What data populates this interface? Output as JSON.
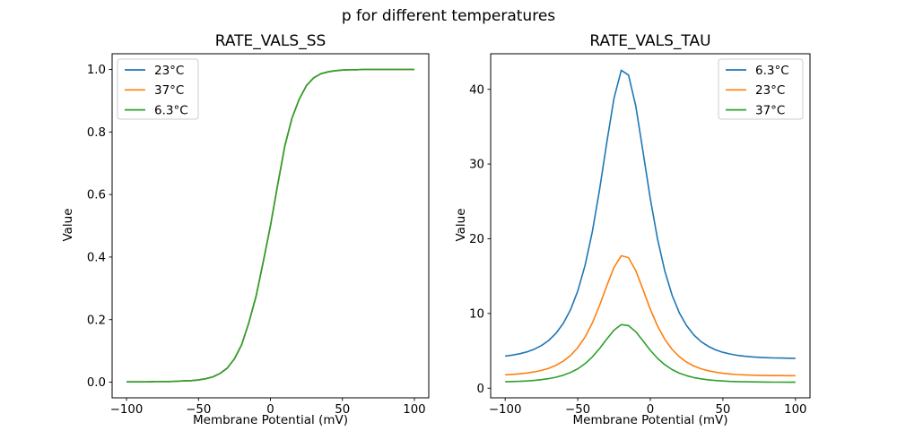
{
  "suptitle": "p for different temperatures",
  "colors": {
    "blue": "#1f77b4",
    "orange": "#ff7f0e",
    "green": "#2ca02c",
    "legend_border": "#cccccc",
    "spine": "#000000"
  },
  "chart_data": [
    {
      "type": "line",
      "title": "RATE_VALS_SS",
      "xlabel": "Membrane Potential (mV)",
      "ylabel": "Value",
      "xlim": [
        -110,
        110
      ],
      "ylim": [
        -0.05,
        1.05
      ],
      "xticks": {
        "values": [
          -100,
          -50,
          0,
          50,
          100
        ],
        "labels": [
          "−100",
          "−50",
          "0",
          "50",
          "100"
        ]
      },
      "yticks": {
        "values": [
          0,
          0.2,
          0.4,
          0.6,
          0.8,
          1.0
        ],
        "labels": [
          "0.0",
          "0.2",
          "0.4",
          "0.6",
          "0.8",
          "1.0"
        ]
      },
      "legend_position": "upper left",
      "note": "all three temperature curves coincide exactly; only the last-drawn (green) is visible",
      "x": [
        -100,
        -95,
        -90,
        -85,
        -80,
        -75,
        -70,
        -65,
        -60,
        -55,
        -50,
        -45,
        -40,
        -35,
        -30,
        -25,
        -20,
        -15,
        -10,
        -5,
        0,
        5,
        10,
        15,
        20,
        25,
        30,
        35,
        40,
        45,
        50,
        55,
        60,
        65,
        70,
        75,
        80,
        85,
        90,
        95,
        100
      ],
      "series": [
        {
          "name": "23°C",
          "color": "#1f77b4",
          "values": [
            0.001,
            0.001,
            0.001,
            0.001,
            0.002,
            0.002,
            0.002,
            0.003,
            0.004,
            0.005,
            0.007,
            0.011,
            0.017,
            0.028,
            0.045,
            0.075,
            0.12,
            0.19,
            0.275,
            0.385,
            0.5,
            0.63,
            0.755,
            0.845,
            0.905,
            0.948,
            0.973,
            0.986,
            0.992,
            0.996,
            0.998,
            0.999,
            0.999,
            1.0,
            1.0,
            1.0,
            1.0,
            1.0,
            1.0,
            1.0,
            1.0
          ]
        },
        {
          "name": "37°C",
          "color": "#ff7f0e",
          "values": [
            0.001,
            0.001,
            0.001,
            0.001,
            0.002,
            0.002,
            0.002,
            0.003,
            0.004,
            0.005,
            0.007,
            0.011,
            0.017,
            0.028,
            0.045,
            0.075,
            0.12,
            0.19,
            0.275,
            0.385,
            0.5,
            0.63,
            0.755,
            0.845,
            0.905,
            0.948,
            0.973,
            0.986,
            0.992,
            0.996,
            0.998,
            0.999,
            0.999,
            1.0,
            1.0,
            1.0,
            1.0,
            1.0,
            1.0,
            1.0,
            1.0
          ]
        },
        {
          "name": "6.3°C",
          "color": "#2ca02c",
          "values": [
            0.001,
            0.001,
            0.001,
            0.001,
            0.002,
            0.002,
            0.002,
            0.003,
            0.004,
            0.005,
            0.007,
            0.011,
            0.017,
            0.028,
            0.045,
            0.075,
            0.12,
            0.19,
            0.275,
            0.385,
            0.5,
            0.63,
            0.755,
            0.845,
            0.905,
            0.948,
            0.973,
            0.986,
            0.992,
            0.996,
            0.998,
            0.999,
            0.999,
            1.0,
            1.0,
            1.0,
            1.0,
            1.0,
            1.0,
            1.0,
            1.0
          ]
        }
      ]
    },
    {
      "type": "line",
      "title": "RATE_VALS_TAU",
      "xlabel": "Membrane Potential (mV)",
      "ylabel": "Value",
      "xlim": [
        -110,
        110
      ],
      "ylim": [
        -1.29,
        44.76
      ],
      "xticks": {
        "values": [
          -100,
          -50,
          0,
          50,
          100
        ],
        "labels": [
          "−100",
          "−50",
          "0",
          "50",
          "100"
        ]
      },
      "yticks": {
        "values": [
          0,
          10,
          20,
          30,
          40
        ],
        "labels": [
          "0",
          "10",
          "20",
          "30",
          "40"
        ]
      },
      "legend_position": "upper right",
      "note": "bell curves peak near -18 mV; peaks approx 42.7 (6.3°C), 17.7 (23°C), 8.5 (37°C)",
      "x": [
        -100,
        -95,
        -90,
        -85,
        -80,
        -75,
        -70,
        -65,
        -60,
        -55,
        -50,
        -45,
        -40,
        -35,
        -30,
        -25,
        -20,
        -15,
        -10,
        -5,
        0,
        5,
        10,
        15,
        20,
        25,
        30,
        35,
        40,
        45,
        50,
        55,
        60,
        65,
        70,
        75,
        80,
        85,
        90,
        95,
        100
      ],
      "series": [
        {
          "name": "6.3°C",
          "color": "#1f77b4",
          "values": [
            4.3,
            4.43,
            4.61,
            4.86,
            5.21,
            5.7,
            6.38,
            7.34,
            8.66,
            10.49,
            13.01,
            16.42,
            20.92,
            26.56,
            32.91,
            38.8,
            42.55,
            41.91,
            37.76,
            31.62,
            25.34,
            19.93,
            15.66,
            12.44,
            10.07,
            8.36,
            7.12,
            6.23,
            5.59,
            5.13,
            4.8,
            4.57,
            4.4,
            4.28,
            4.19,
            4.13,
            4.08,
            4.05,
            4.03,
            4.01,
            4.0
          ]
        },
        {
          "name": "23°C",
          "color": "#ff7f0e",
          "values": [
            1.79,
            1.85,
            1.92,
            2.03,
            2.17,
            2.38,
            2.66,
            3.06,
            3.61,
            4.37,
            5.42,
            6.84,
            8.72,
            11.07,
            13.71,
            16.17,
            17.73,
            17.46,
            15.73,
            13.18,
            10.56,
            8.3,
            6.53,
            5.18,
            4.2,
            3.48,
            2.97,
            2.6,
            2.33,
            2.14,
            2.0,
            1.9,
            1.83,
            1.78,
            1.75,
            1.72,
            1.7,
            1.69,
            1.68,
            1.67,
            1.67
          ]
        },
        {
          "name": "37°C",
          "color": "#2ca02c",
          "values": [
            0.86,
            0.89,
            0.92,
            0.97,
            1.04,
            1.14,
            1.28,
            1.47,
            1.73,
            2.1,
            2.6,
            3.28,
            4.18,
            5.31,
            6.58,
            7.76,
            8.51,
            8.38,
            7.55,
            6.32,
            5.07,
            3.99,
            3.13,
            2.49,
            2.01,
            1.67,
            1.42,
            1.25,
            1.12,
            1.03,
            0.96,
            0.91,
            0.88,
            0.86,
            0.84,
            0.83,
            0.82,
            0.81,
            0.81,
            0.8,
            0.8
          ]
        }
      ]
    }
  ]
}
